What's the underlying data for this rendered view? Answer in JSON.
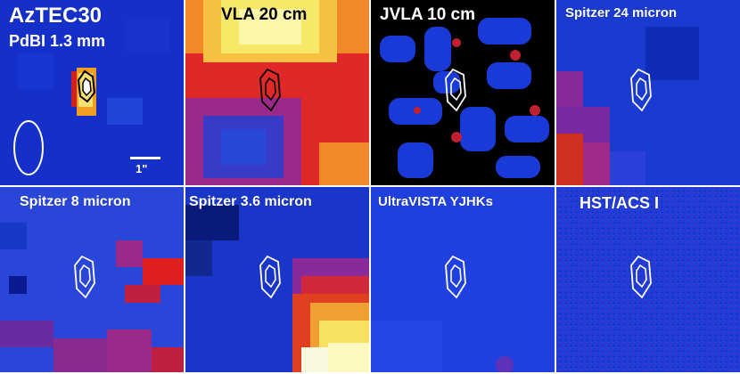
{
  "panels": [
    {
      "title": "AzTEC30",
      "subtitle": "PdBI 1.3 mm",
      "scale_label": "1\""
    },
    {
      "title": "VLA 20 cm"
    },
    {
      "title": "JVLA 10 cm"
    },
    {
      "title": "Spitzer 24 micron"
    },
    {
      "title": "Spitzer 8 micron"
    },
    {
      "title": "Spitzer 3.6 micron"
    },
    {
      "title": "UltraVISTA YJHKs"
    },
    {
      "title": "HST/ACS I"
    }
  ],
  "colors": {
    "deep_blue": "#0a1a9a",
    "blue": "#1f3dd8",
    "purple": "#7a2a9a",
    "red": "#e02020",
    "orange": "#f08020",
    "yellow": "#f8f060",
    "black": "#000000",
    "white": "#ffffff"
  }
}
